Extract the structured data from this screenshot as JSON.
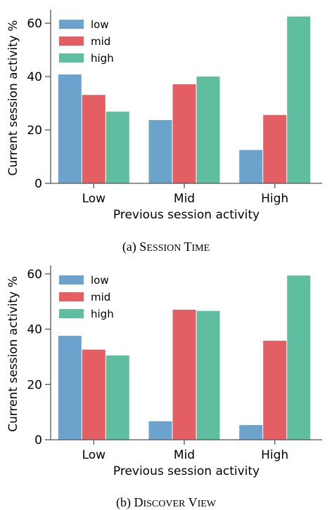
{
  "chart_data": [
    {
      "type": "bar",
      "caption_prefix": "(a) ",
      "caption_title": "Session time",
      "xlabel": "Previous session activity",
      "ylabel": "Current session activity %",
      "categories": [
        "Low",
        "Mid",
        "High"
      ],
      "ylim": [
        0,
        65
      ],
      "yticks": [
        0,
        20,
        40,
        60
      ],
      "legend_position": "top-left",
      "series": [
        {
          "name": "low",
          "color": "#6ca3cc",
          "values": [
            40.8,
            23.7,
            12.5
          ]
        },
        {
          "name": "mid",
          "color": "#e35f64",
          "values": [
            33.1,
            37.1,
            25.6
          ]
        },
        {
          "name": "high",
          "color": "#60bea0",
          "values": [
            26.9,
            40.0,
            62.5
          ]
        }
      ]
    },
    {
      "type": "bar",
      "caption_prefix": "(b) ",
      "caption_title": "Discover View",
      "xlabel": "Previous session activity",
      "ylabel": "Current session activity %",
      "categories": [
        "Low",
        "Mid",
        "High"
      ],
      "ylim": [
        0,
        63
      ],
      "yticks": [
        0,
        20,
        40,
        60
      ],
      "legend_position": "top-left",
      "series": [
        {
          "name": "low",
          "color": "#6ca3cc",
          "values": [
            37.6,
            6.7,
            5.3
          ]
        },
        {
          "name": "mid",
          "color": "#e35f64",
          "values": [
            32.6,
            47.0,
            35.8
          ]
        },
        {
          "name": "high",
          "color": "#60bea0",
          "values": [
            30.5,
            46.6,
            59.4
          ]
        }
      ]
    }
  ]
}
